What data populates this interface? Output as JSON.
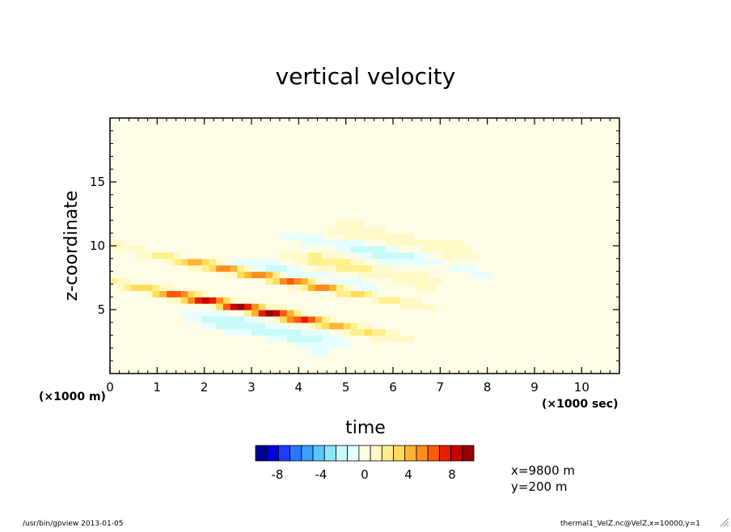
{
  "chart_data": {
    "type": "heatmap",
    "title": "vertical velocity",
    "xlabel": "time",
    "ylabel": "z-coordinate",
    "x_unit": "(×1000 sec)",
    "y_unit": "(×1000 m)",
    "xlim": [
      0,
      10.8
    ],
    "ylim": [
      0,
      20
    ],
    "xticks": [
      "0",
      "1",
      "2",
      "3",
      "4",
      "5",
      "6",
      "7",
      "8",
      "9",
      "10"
    ],
    "yticks": [
      "5",
      "10",
      "15"
    ],
    "colorbar": {
      "colors": [
        "#000096",
        "#0000dc",
        "#1e3cff",
        "#2878ff",
        "#3ca0ff",
        "#55c8ff",
        "#8ce6ff",
        "#c8fafa",
        "#e8ffff",
        "#fffde6",
        "#fffac8",
        "#fff08c",
        "#ffdc5a",
        "#ffb432",
        "#ff8c1e",
        "#ff5a0a",
        "#e61e00",
        "#c80000",
        "#960000"
      ],
      "tick_labels": [
        "-8",
        "-4",
        "0",
        "4",
        "8"
      ],
      "tick_values": [
        -8,
        -4,
        0,
        4,
        8
      ],
      "range": [
        -10,
        10
      ]
    },
    "features": [
      {
        "kind": "updraft",
        "x": 2.8,
        "y": 5.2,
        "value": 9.5
      },
      {
        "kind": "updraft",
        "x": 3.5,
        "y": 7.5,
        "value": 6.5
      },
      {
        "kind": "downdraft",
        "x": 3.2,
        "y": 3.5,
        "value": -2.5
      },
      {
        "kind": "updraft",
        "x": 5.0,
        "y": 8.5,
        "value": 2.0
      },
      {
        "kind": "downdraft",
        "x": 5.7,
        "y": 9.5,
        "value": -2.0
      },
      {
        "kind": "updraft",
        "x": 6.0,
        "y": 10.5,
        "value": 1.5
      },
      {
        "kind": "downdraft",
        "x": 3.8,
        "y": 8.0,
        "value": -1.5
      }
    ]
  },
  "annotations": {
    "x_position": "x=9800 m",
    "y_position": "y=200 m"
  },
  "footer": {
    "left": "/usr/bin/gpview  2013-01-05",
    "right": "thermal1_VelZ.nc@VelZ,x=10000,y=1"
  }
}
